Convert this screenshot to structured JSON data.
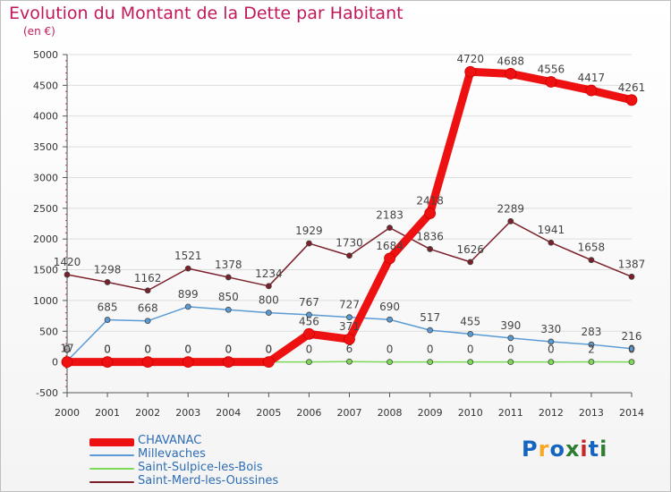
{
  "title": "Evolution du Montant de la Dette par Habitant",
  "unit": "(en €)",
  "brand": [
    "P",
    "r",
    "o",
    "x",
    "i",
    "t",
    "i"
  ],
  "colors": {
    "title": "#c2185b",
    "grid": "#dddddd",
    "axis": "#555555",
    "brand": [
      "#1565c0",
      "#f9a825",
      "#1565c0",
      "#2e7d32",
      "#c62828",
      "#1565c0",
      "#2e7d32"
    ]
  },
  "chart_data": {
    "type": "line",
    "title": "Evolution du Montant de la Dette par Habitant",
    "ylabel": "(en €)",
    "xlabel": "",
    "x": [
      "2000",
      "2001",
      "2002",
      "2003",
      "2004",
      "2005",
      "2006",
      "2007",
      "2008",
      "2009",
      "2010",
      "2011",
      "2012",
      "2013",
      "2014"
    ],
    "ylim": [
      -500,
      5000
    ],
    "yticks": [
      "5000",
      "4500",
      "4000",
      "3500",
      "3000",
      "2500",
      "2000",
      "1500",
      "1000",
      "500",
      "0",
      "-500"
    ],
    "grid": true,
    "legend_position": "bottom-left",
    "series": [
      {
        "name": "Saint-Merd-les-Oussines",
        "color": "#7b1f2a",
        "width": 1.5,
        "values": [
          1420,
          1298,
          1162,
          1521,
          1378,
          1234,
          1929,
          1730,
          2183,
          1836,
          1626,
          2289,
          1941,
          1658,
          1387
        ],
        "labels": [
          "1420",
          "1298",
          "1162",
          "1521",
          "1378",
          "1234",
          "1929",
          "1730",
          "2183",
          "1836",
          "1626",
          "2289",
          "1941",
          "1658",
          "1387"
        ]
      },
      {
        "name": "Millevaches",
        "color": "#5b9bd5",
        "width": 1.5,
        "values": [
          17,
          685,
          668,
          899,
          850,
          800,
          767,
          727,
          690,
          517,
          455,
          390,
          330,
          283,
          216
        ],
        "labels": [
          "17",
          "685",
          "668",
          "899",
          "850",
          "800",
          "767",
          "727",
          "690",
          "517",
          "455",
          "390",
          "330",
          "283",
          "216"
        ]
      },
      {
        "name": "Saint-Sulpice-les-Bois",
        "color": "#7ed957",
        "width": 1.5,
        "values": [
          0,
          0,
          0,
          0,
          0,
          0,
          0,
          6,
          0,
          0,
          0,
          0,
          0,
          2,
          0
        ],
        "labels": [
          "0",
          "0",
          "0",
          "0",
          "0",
          "0",
          "0",
          "6",
          "0",
          "0",
          "0",
          "0",
          "0",
          "2",
          "0"
        ]
      },
      {
        "name": "CHAVANAC",
        "color": "#ee1111",
        "width": 9,
        "values": [
          0,
          0,
          0,
          0,
          0,
          0,
          456,
          371,
          1684,
          2418,
          4720,
          4688,
          4556,
          4417,
          4261
        ],
        "labels": [
          "0",
          "0",
          "0",
          "0",
          "0",
          "0",
          "456",
          "371",
          "1684",
          "2418",
          "4720",
          "4688",
          "4556",
          "4417",
          "4261"
        ]
      }
    ],
    "legend": [
      {
        "name": "CHAVANAC",
        "color": "#ee1111",
        "thick": true
      },
      {
        "name": "Millevaches",
        "color": "#5b9bd5",
        "thick": false
      },
      {
        "name": "Saint-Sulpice-les-Bois",
        "color": "#7ed957",
        "thick": false
      },
      {
        "name": "Saint-Merd-les-Oussines",
        "color": "#7b1f2a",
        "thick": false
      }
    ]
  }
}
